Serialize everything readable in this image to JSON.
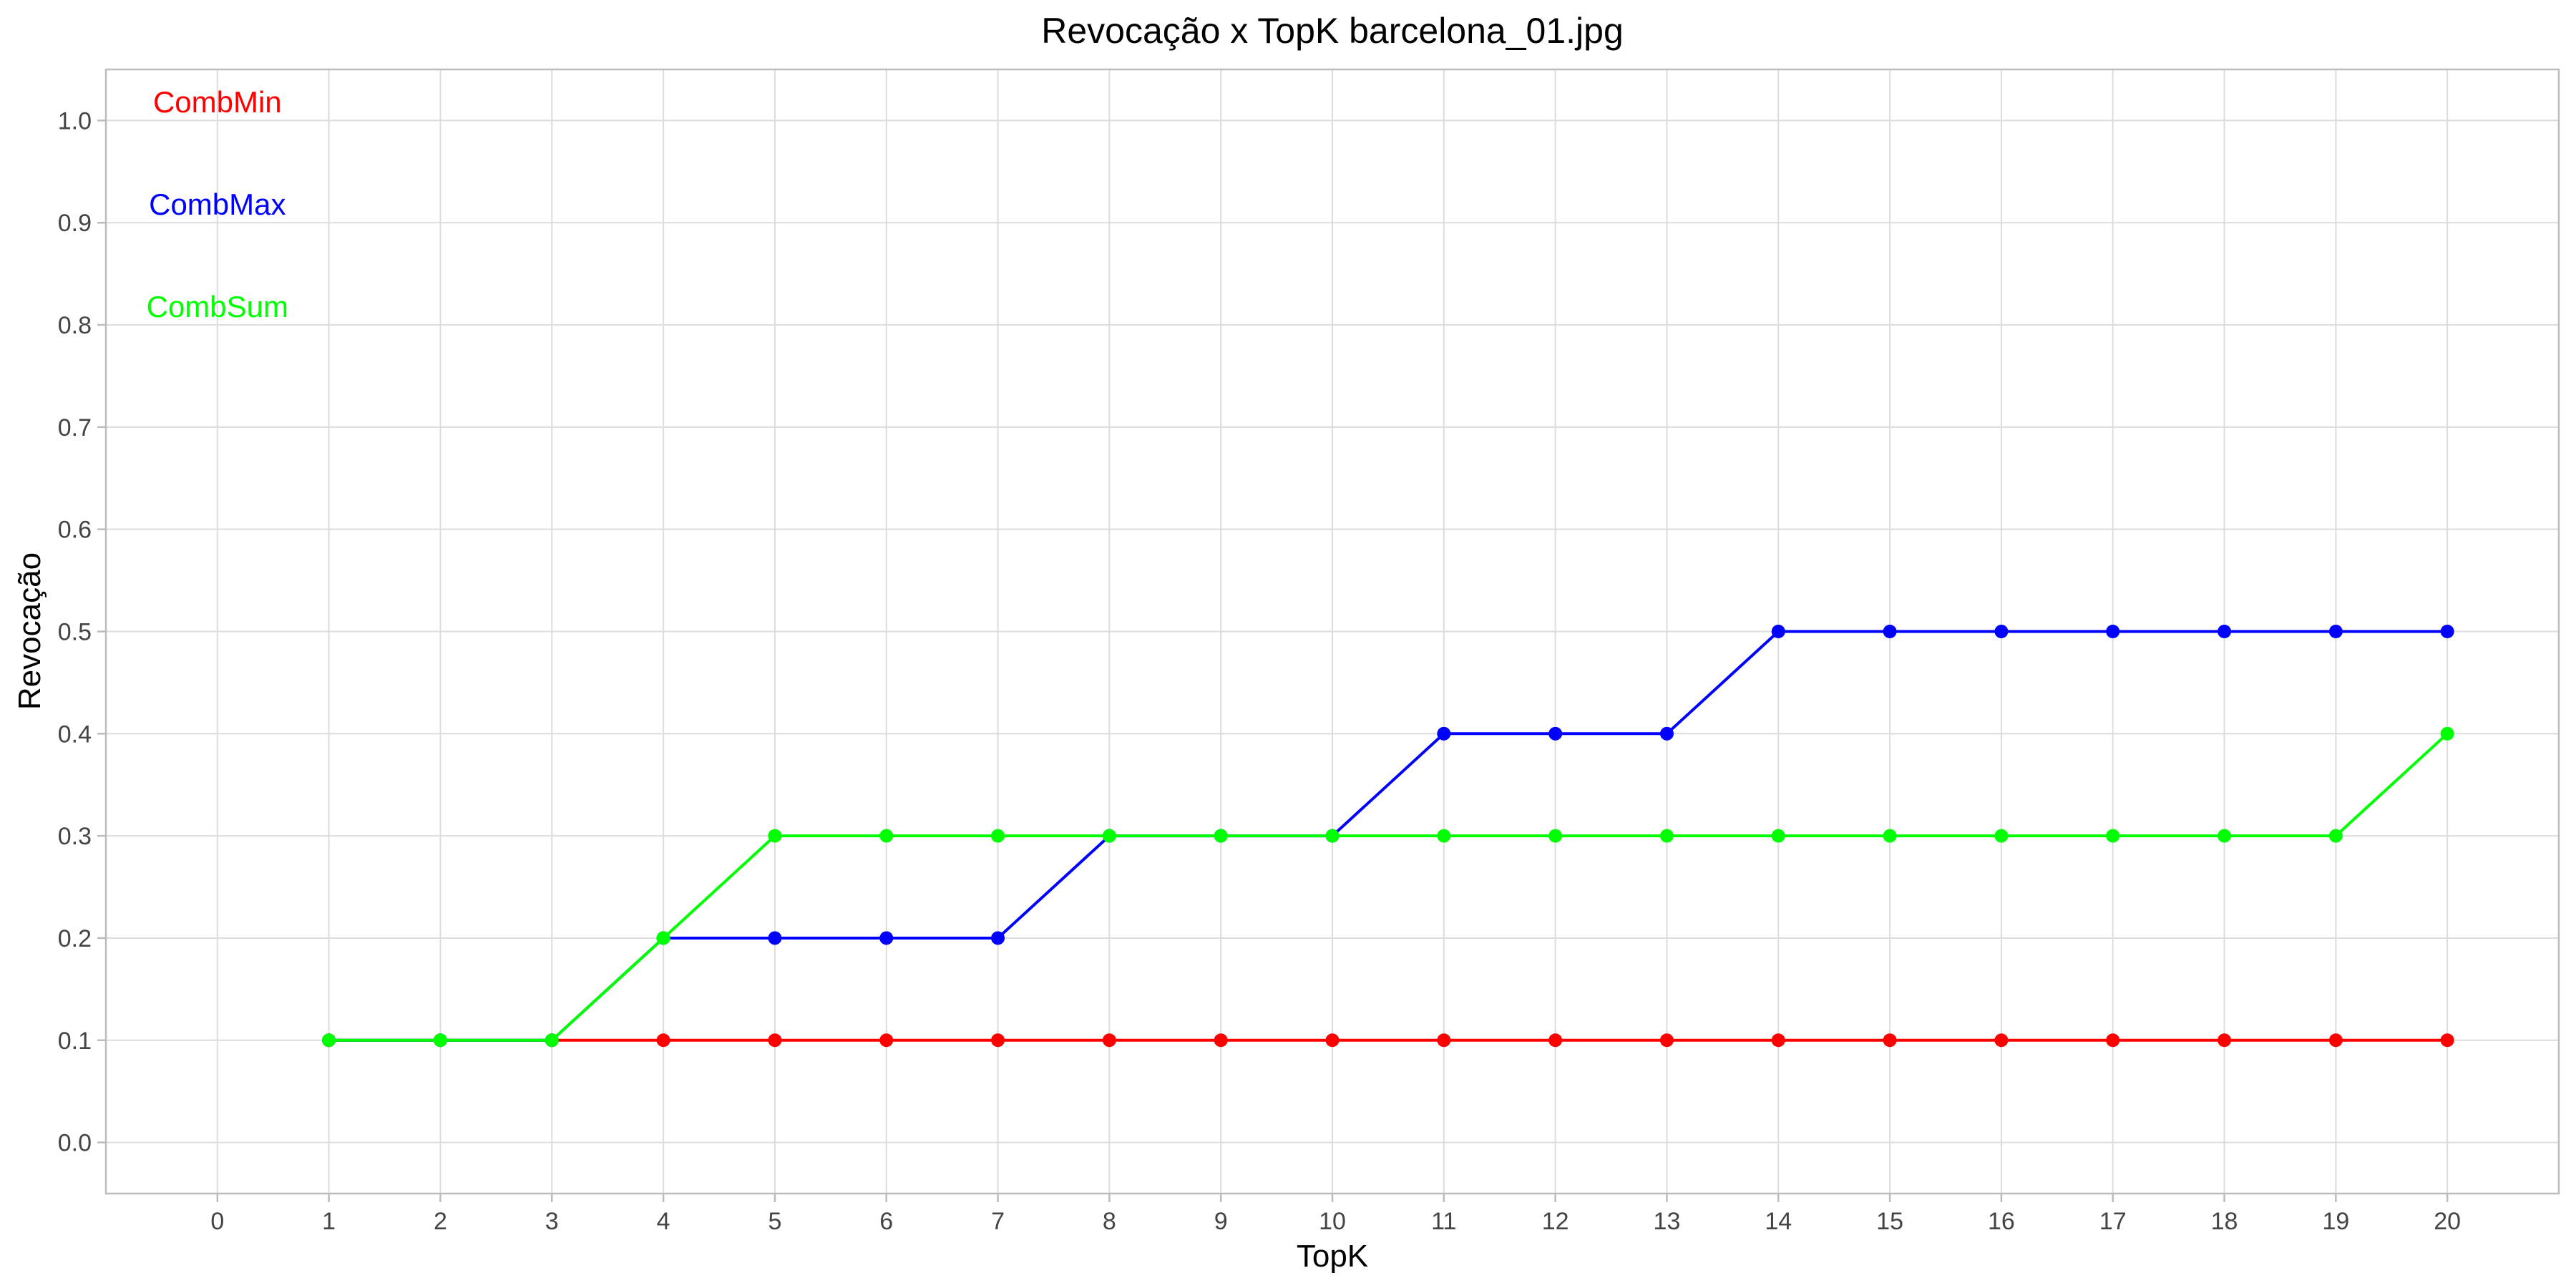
{
  "chart_data": {
    "type": "line",
    "title": "Revocação x TopK barcelona_01.jpg",
    "xlabel": "TopK",
    "ylabel": "Revocação",
    "xlim": [
      -1,
      21
    ],
    "ylim": [
      -0.05,
      1.05
    ],
    "xticks": [
      0,
      1,
      2,
      3,
      4,
      5,
      6,
      7,
      8,
      9,
      10,
      11,
      12,
      13,
      14,
      15,
      16,
      17,
      18,
      19,
      20
    ],
    "yticks": [
      "0.0",
      "0.1",
      "0.2",
      "0.3",
      "0.4",
      "0.5",
      "0.6",
      "0.7",
      "0.8",
      "0.9",
      "1.0"
    ],
    "grid": true,
    "legend_placement": "top-left",
    "x": [
      1,
      2,
      3,
      4,
      5,
      6,
      7,
      8,
      9,
      10,
      11,
      12,
      13,
      14,
      15,
      16,
      17,
      18,
      19,
      20
    ],
    "series": [
      {
        "name": "CombMin",
        "color": "#ff0000",
        "values": [
          0.1,
          0.1,
          0.1,
          0.1,
          0.1,
          0.1,
          0.1,
          0.1,
          0.1,
          0.1,
          0.1,
          0.1,
          0.1,
          0.1,
          0.1,
          0.1,
          0.1,
          0.1,
          0.1,
          0.1
        ]
      },
      {
        "name": "CombMax",
        "color": "#0000ff",
        "values": [
          0.1,
          0.1,
          0.1,
          0.2,
          0.2,
          0.2,
          0.2,
          0.3,
          0.3,
          0.3,
          0.4,
          0.4,
          0.4,
          0.5,
          0.5,
          0.5,
          0.5,
          0.5,
          0.5,
          0.5
        ]
      },
      {
        "name": "CombSum",
        "color": "#00ff00",
        "values": [
          0.1,
          0.1,
          0.1,
          0.2,
          0.3,
          0.3,
          0.3,
          0.3,
          0.3,
          0.3,
          0.3,
          0.3,
          0.3,
          0.3,
          0.3,
          0.3,
          0.3,
          0.3,
          0.3,
          0.4
        ]
      }
    ]
  }
}
